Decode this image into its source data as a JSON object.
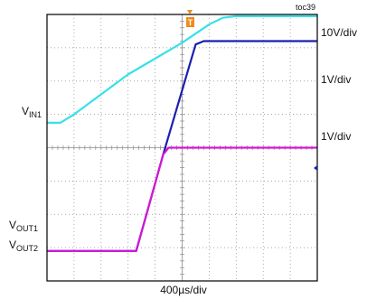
{
  "figure_id": "toc39",
  "colors": {
    "vin": "#38e0e8",
    "vout1": "#1c1fb0",
    "vout2": "#d417d4",
    "trigger_marker": "#f08a1e",
    "grid": "#8a8a8a",
    "frame": "#000000",
    "background": "#ffffff"
  },
  "labels": {
    "vin1_main": "V",
    "vin1_sub": "IN1",
    "vout1_main": "V",
    "vout1_sub": "OUT1",
    "vout2_main": "V",
    "vout2_sub": "OUT2",
    "scale_vin": "10V/div",
    "scale_vout1": "1V/div",
    "scale_vout2": "1V/div",
    "time_base": "400µs/div",
    "trigger_marker": "T"
  },
  "chart_data": {
    "type": "line",
    "grid": true,
    "x_divisions": 10,
    "y_divisions": 8,
    "x_unit": "div",
    "y_unit": "div",
    "xlim": [
      0,
      10
    ],
    "ylim": [
      0,
      8
    ],
    "series": [
      {
        "key": "vin",
        "points": [
          [
            0,
            4.75
          ],
          [
            0.5,
            4.75
          ],
          [
            1.0,
            5.0
          ],
          [
            3.0,
            6.2
          ],
          [
            5.0,
            7.15
          ],
          [
            6.0,
            7.7
          ],
          [
            6.5,
            7.9
          ],
          [
            7.0,
            7.95
          ],
          [
            10,
            7.95
          ]
        ]
      },
      {
        "key": "vout1",
        "points": [
          [
            0,
            0.9
          ],
          [
            3.3,
            0.9
          ],
          [
            3.75,
            2.2
          ],
          [
            4.3,
            3.8
          ],
          [
            5.5,
            7.1
          ],
          [
            5.8,
            7.2
          ],
          [
            10,
            7.2
          ]
        ]
      },
      {
        "key": "vout2",
        "points": [
          [
            0,
            0.9
          ],
          [
            3.3,
            0.9
          ],
          [
            3.75,
            2.2
          ],
          [
            4.3,
            3.8
          ],
          [
            4.5,
            4.0
          ],
          [
            10,
            4.0
          ]
        ]
      }
    ]
  }
}
